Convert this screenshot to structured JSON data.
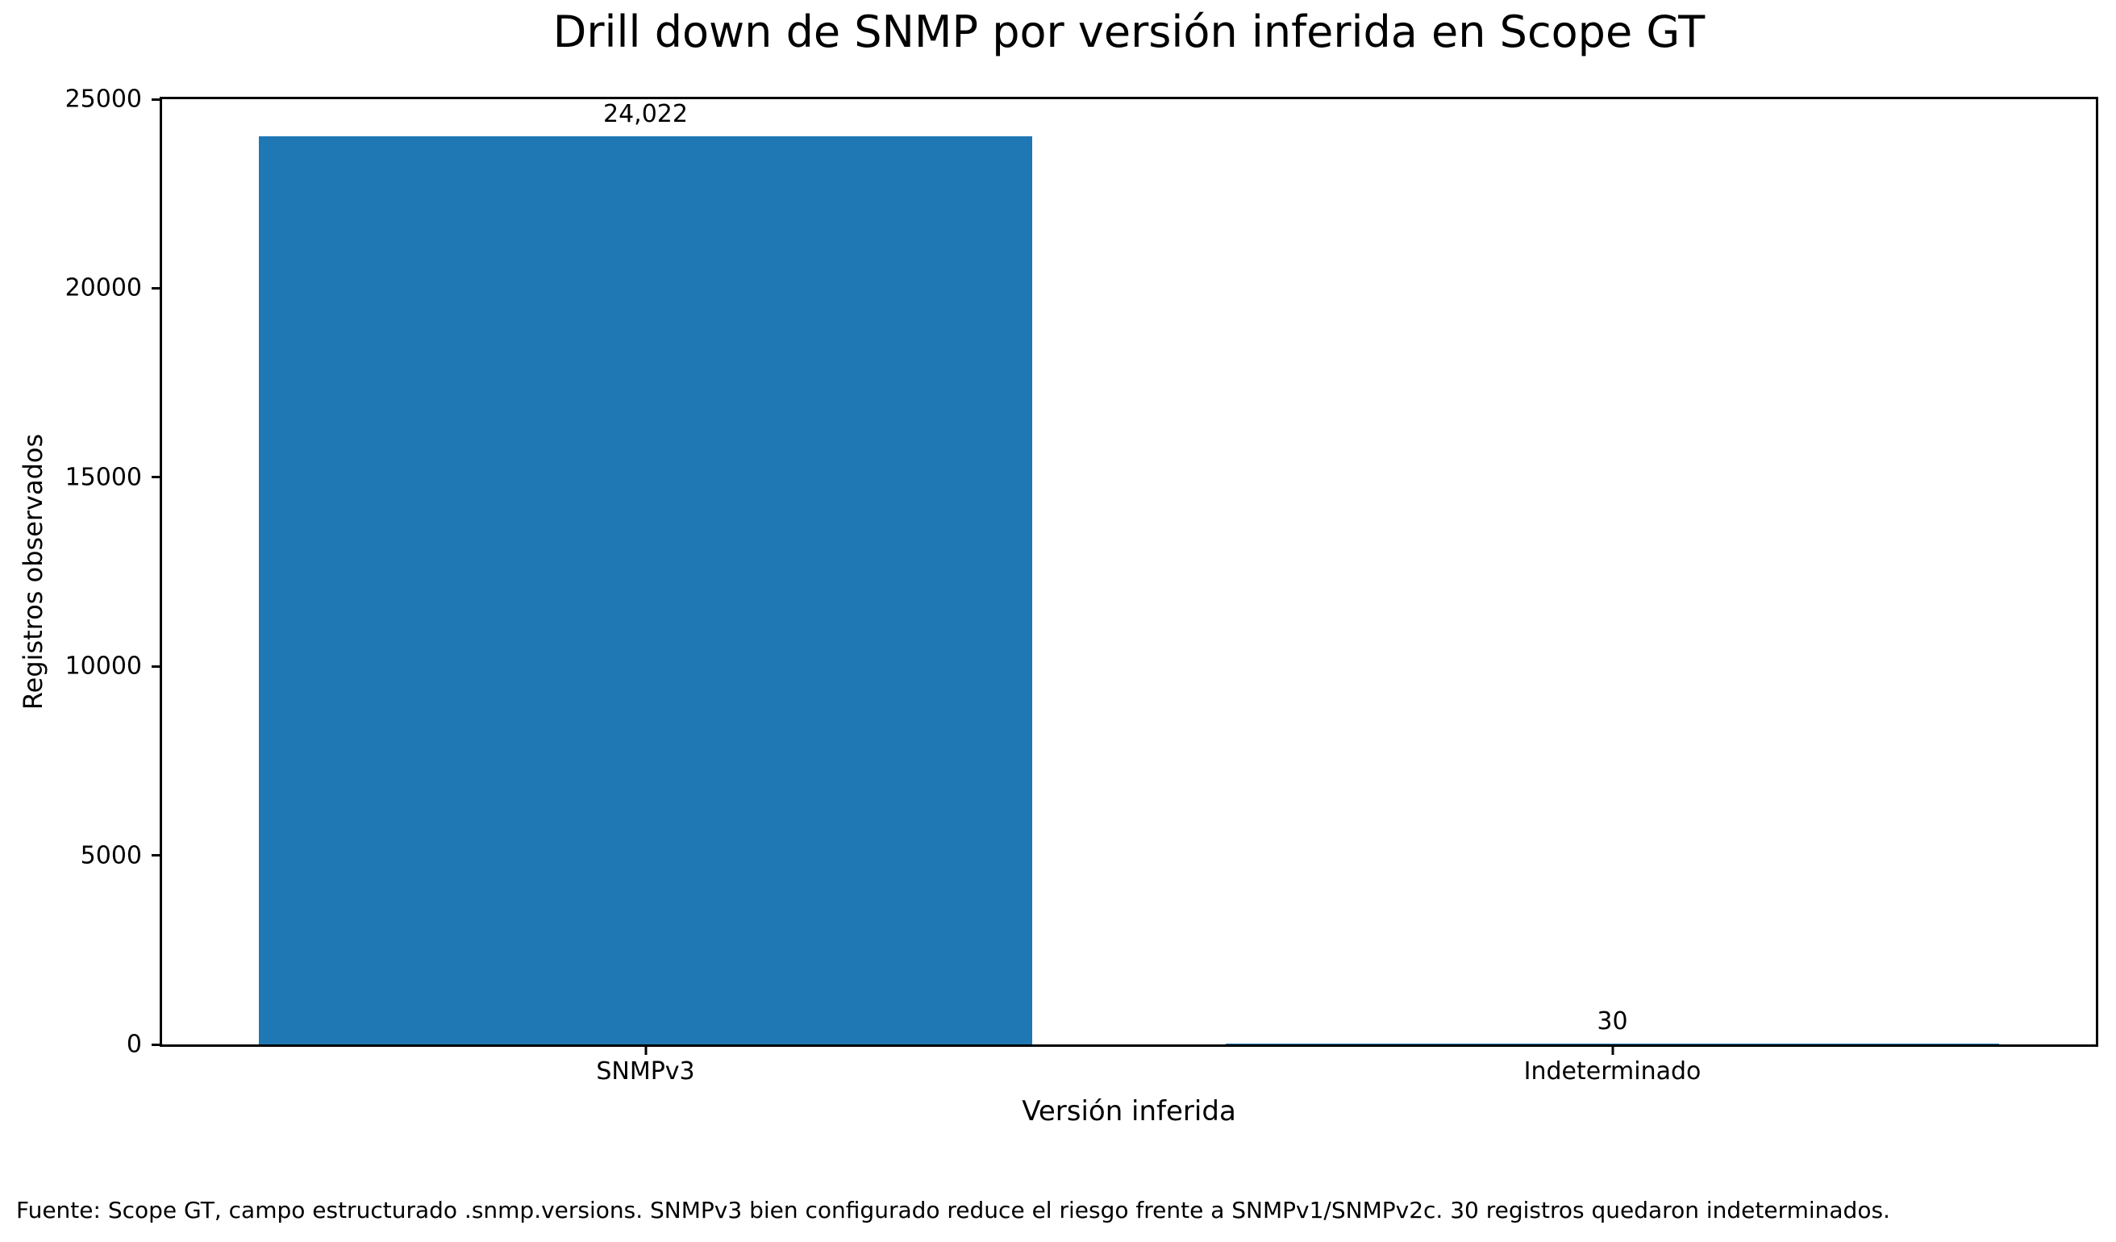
{
  "chart_data": {
    "type": "bar",
    "title": "Drill down de SNMP por versión inferida en Scope GT",
    "xlabel": "Versión inferida",
    "ylabel": "Registros observados",
    "categories": [
      "SNMPv3",
      "Indeterminado"
    ],
    "values": [
      24022,
      30
    ],
    "bar_labels": [
      "24,022",
      "30"
    ],
    "ylim": [
      0,
      25000
    ],
    "yticks": [
      0,
      5000,
      10000,
      15000,
      20000,
      25000
    ],
    "bar_color": "#1f77b4",
    "bar_width_fraction": 0.8,
    "grid": false,
    "legend": false
  },
  "footer": "Fuente: Scope GT, campo estructurado .snmp.versions. SNMPv3 bien configurado reduce el riesgo frente a SNMPv1/SNMPv2c. 30 registros quedaron indeterminados."
}
